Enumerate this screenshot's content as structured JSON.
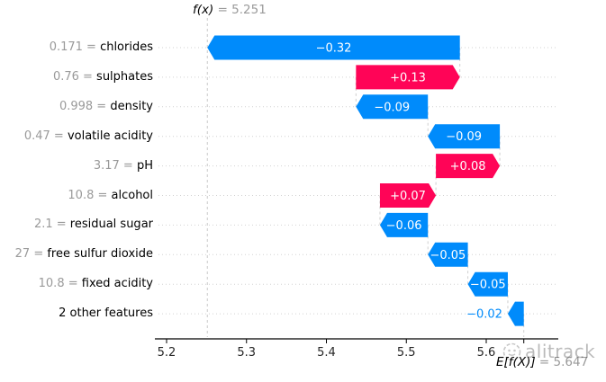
{
  "chart_data": {
    "type": "bar",
    "subtype": "shap-waterfall",
    "fx_label": "f(x)",
    "fx_value": 5.251,
    "fx_value_text": "= 5.251",
    "ef_label": "E[f(X)]",
    "ef_value": 5.647,
    "ef_value_text": "= 5.647",
    "xlabel": "",
    "ylabel": "",
    "xticks": [
      5.2,
      5.3,
      5.4,
      5.5,
      5.6
    ],
    "xlim": [
      5.185,
      5.69
    ],
    "grid": "dotted-row-guides",
    "legend": "none",
    "features": [
      {
        "value": "0.171",
        "name": "chlorides",
        "shap": -0.32,
        "label": "−0.32"
      },
      {
        "value": "0.76",
        "name": "sulphates",
        "shap": 0.13,
        "label": "+0.13"
      },
      {
        "value": "0.998",
        "name": "density",
        "shap": -0.09,
        "label": "−0.09"
      },
      {
        "value": "0.47",
        "name": "volatile acidity",
        "shap": -0.09,
        "label": "−0.09"
      },
      {
        "value": "3.17",
        "name": "pH",
        "shap": 0.08,
        "label": "+0.08"
      },
      {
        "value": "10.8",
        "name": "alcohol",
        "shap": 0.07,
        "label": "+0.07"
      },
      {
        "value": "2.1",
        "name": "residual sugar",
        "shap": -0.06,
        "label": "−0.06"
      },
      {
        "value": "27",
        "name": "free sulfur dioxide",
        "shap": -0.05,
        "label": "−0.05"
      },
      {
        "value": "10.8",
        "name": "fixed acidity",
        "shap": -0.05,
        "label": "−0.05"
      },
      {
        "value": null,
        "name": "2 other features",
        "shap": -0.02,
        "label": "−0.02"
      }
    ],
    "colors": {
      "positive_bar": "#ff0457",
      "negative_bar": "#008bfb",
      "bar_text": "#ffffff",
      "muted_text": "#9a9a9a",
      "tick_text": "#262626",
      "guide_line": "#d2d2d2",
      "axis_line": "#000000"
    },
    "equals_sign": "="
  },
  "watermark": {
    "text": "alitrack"
  }
}
